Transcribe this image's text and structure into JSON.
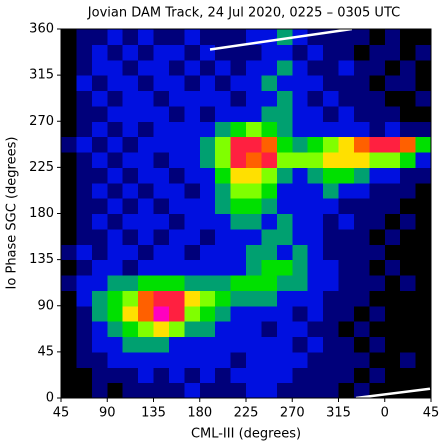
{
  "chart_data": {
    "type": "heatmap",
    "title": "Jovian DAM Track, 24 Jul 2020, 0225 – 0305 UTC",
    "xlabel": "CML-III (degrees)",
    "ylabel": "Io Phase SGC (degrees)",
    "xlim": [
      45,
      405
    ],
    "ylim": [
      0,
      360
    ],
    "xticks": [
      45,
      90,
      135,
      180,
      225,
      270,
      315,
      {
        "value": 360,
        "label": "0"
      },
      {
        "value": 405,
        "label": "45"
      }
    ],
    "yticks": [
      0,
      45,
      90,
      135,
      180,
      225,
      270,
      315,
      360
    ],
    "colormap": [
      "#000000",
      "#00007a",
      "#0010e0",
      "#00a070",
      "#00e000",
      "#80ff00",
      "#ffe000",
      "#ff6000",
      "#ff2040",
      "#ff00c0"
    ],
    "z": [
      [
        0,
        0,
        1,
        0,
        1,
        1,
        1,
        1,
        2,
        1,
        1,
        1,
        2,
        2,
        1,
        1,
        1,
        1,
        0,
        1,
        0,
        0,
        0,
        0
      ],
      [
        0,
        0,
        1,
        1,
        1,
        2,
        1,
        2,
        1,
        2,
        1,
        2,
        2,
        2,
        2,
        1,
        1,
        1,
        1,
        0,
        1,
        0,
        0,
        0
      ],
      [
        0,
        1,
        1,
        2,
        2,
        2,
        2,
        2,
        2,
        2,
        2,
        1,
        2,
        2,
        2,
        2,
        1,
        1,
        1,
        1,
        0,
        0,
        1,
        0
      ],
      [
        0,
        1,
        2,
        2,
        3,
        3,
        3,
        2,
        2,
        2,
        2,
        2,
        2,
        2,
        2,
        1,
        2,
        1,
        1,
        0,
        1,
        0,
        0,
        0
      ],
      [
        0,
        1,
        2,
        3,
        4,
        5,
        6,
        5,
        3,
        3,
        2,
        2,
        2,
        1,
        2,
        2,
        1,
        1,
        0,
        1,
        0,
        0,
        0,
        0
      ],
      [
        0,
        1,
        3,
        4,
        6,
        7,
        9,
        8,
        5,
        4,
        3,
        2,
        2,
        2,
        2,
        1,
        2,
        1,
        1,
        0,
        1,
        0,
        0,
        0
      ],
      [
        0,
        2,
        3,
        4,
        5,
        7,
        8,
        8,
        6,
        5,
        4,
        3,
        3,
        3,
        2,
        2,
        2,
        1,
        1,
        1,
        0,
        0,
        0,
        0
      ],
      [
        1,
        2,
        2,
        3,
        3,
        4,
        4,
        4,
        3,
        3,
        3,
        4,
        4,
        4,
        3,
        3,
        2,
        2,
        1,
        1,
        1,
        0,
        1,
        0
      ],
      [
        0,
        1,
        2,
        2,
        1,
        2,
        2,
        2,
        2,
        2,
        2,
        2,
        3,
        4,
        4,
        3,
        2,
        2,
        1,
        1,
        0,
        1,
        0,
        0
      ],
      [
        1,
        2,
        1,
        2,
        2,
        1,
        2,
        2,
        1,
        2,
        2,
        2,
        3,
        3,
        2,
        3,
        2,
        1,
        1,
        1,
        1,
        0,
        0,
        0
      ],
      [
        0,
        1,
        1,
        2,
        1,
        2,
        1,
        2,
        2,
        1,
        2,
        2,
        2,
        3,
        3,
        2,
        2,
        1,
        1,
        1,
        0,
        1,
        0,
        0
      ],
      [
        0,
        1,
        2,
        1,
        2,
        2,
        2,
        1,
        2,
        2,
        2,
        3,
        3,
        2,
        3,
        2,
        2,
        1,
        2,
        1,
        1,
        0,
        1,
        0
      ],
      [
        0,
        1,
        1,
        2,
        1,
        2,
        1,
        2,
        2,
        2,
        3,
        4,
        4,
        3,
        2,
        2,
        2,
        2,
        1,
        1,
        1,
        1,
        0,
        0
      ],
      [
        0,
        1,
        2,
        1,
        2,
        1,
        2,
        2,
        1,
        2,
        3,
        5,
        5,
        4,
        2,
        2,
        2,
        3,
        2,
        2,
        1,
        1,
        1,
        0
      ],
      [
        0,
        1,
        1,
        2,
        1,
        2,
        2,
        1,
        2,
        2,
        4,
        6,
        6,
        5,
        3,
        2,
        3,
        4,
        4,
        3,
        2,
        2,
        1,
        1
      ],
      [
        0,
        1,
        2,
        1,
        2,
        2,
        1,
        2,
        2,
        3,
        5,
        8,
        7,
        8,
        5,
        5,
        5,
        6,
        6,
        6,
        5,
        5,
        4,
        2
      ],
      [
        1,
        2,
        1,
        2,
        1,
        2,
        2,
        2,
        2,
        3,
        5,
        8,
        8,
        7,
        4,
        3,
        4,
        5,
        6,
        7,
        8,
        8,
        7,
        4
      ],
      [
        0,
        1,
        2,
        1,
        2,
        1,
        2,
        2,
        2,
        2,
        3,
        4,
        5,
        4,
        3,
        2,
        2,
        2,
        2,
        2,
        1,
        2,
        1,
        1
      ],
      [
        0,
        1,
        1,
        2,
        2,
        2,
        2,
        1,
        2,
        1,
        2,
        2,
        2,
        3,
        3,
        2,
        2,
        1,
        2,
        1,
        1,
        1,
        0,
        0
      ],
      [
        0,
        1,
        2,
        1,
        2,
        2,
        1,
        2,
        2,
        2,
        2,
        1,
        2,
        2,
        3,
        2,
        1,
        2,
        1,
        1,
        1,
        0,
        0,
        1
      ],
      [
        0,
        2,
        1,
        2,
        2,
        1,
        2,
        2,
        1,
        2,
        1,
        2,
        2,
        3,
        2,
        2,
        2,
        1,
        1,
        1,
        0,
        1,
        1,
        0
      ],
      [
        0,
        1,
        2,
        2,
        1,
        2,
        2,
        1,
        2,
        1,
        2,
        1,
        2,
        2,
        3,
        2,
        1,
        1,
        2,
        1,
        1,
        0,
        1,
        0
      ],
      [
        0,
        1,
        2,
        1,
        2,
        1,
        2,
        2,
        1,
        2,
        1,
        1,
        1,
        2,
        2,
        1,
        2,
        1,
        1,
        0,
        1,
        1,
        0,
        1
      ],
      [
        0,
        1,
        1,
        2,
        1,
        2,
        1,
        1,
        2,
        1,
        1,
        1,
        2,
        2,
        3,
        2,
        1,
        1,
        1,
        1,
        0,
        1,
        0,
        0
      ]
    ],
    "overlay_color": "#ffffff",
    "overlay": [
      {
        "x": [
          190,
          328
        ],
        "y": [
          340,
          360
        ]
      },
      {
        "x": [
          332,
          404
        ],
        "y": [
          0,
          9
        ]
      }
    ]
  }
}
